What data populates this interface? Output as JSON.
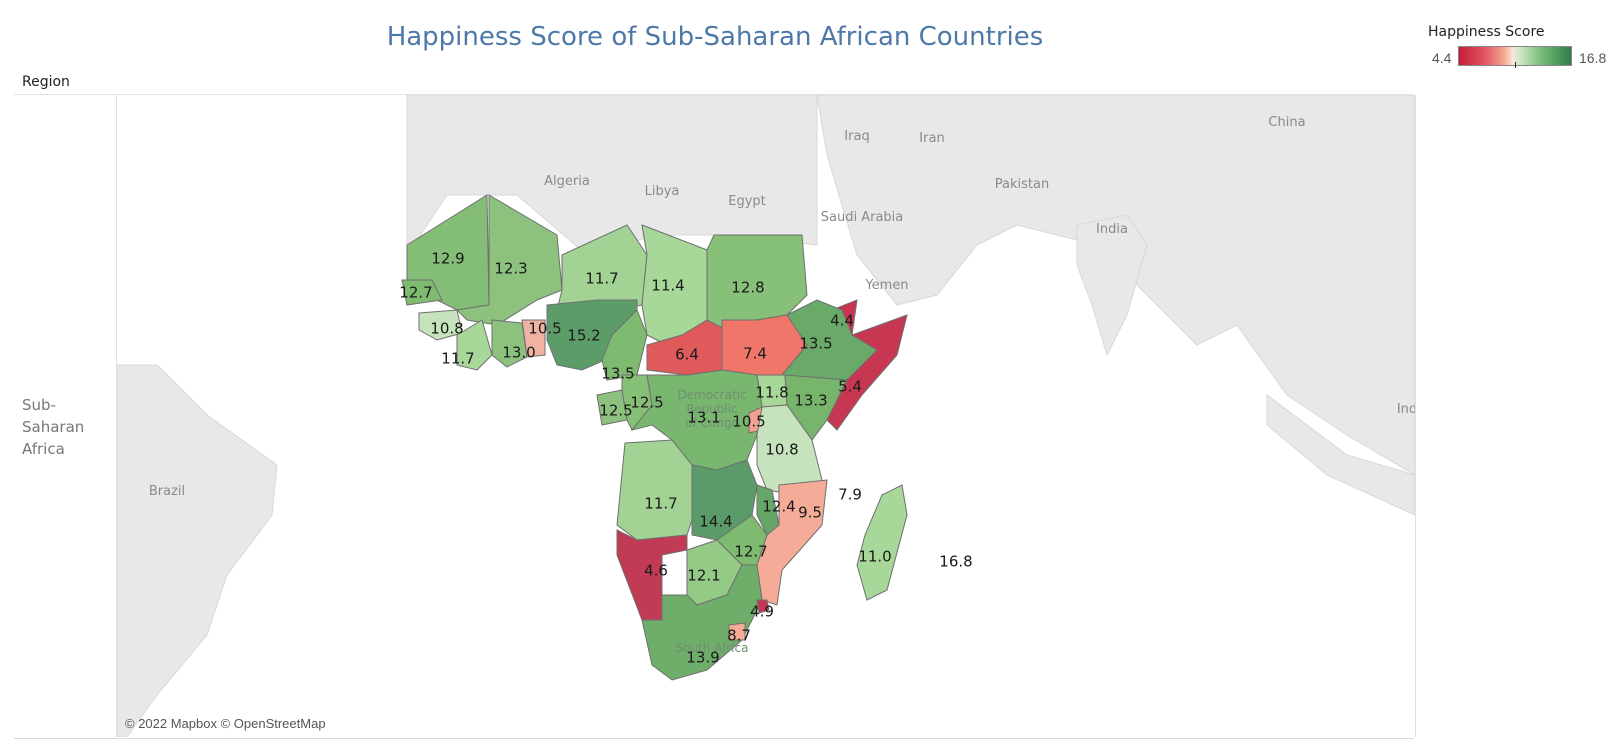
{
  "title": "Happiness Score of Sub-Saharan African Countries",
  "region_header": "Region",
  "region_value_line1": "Sub-Saharan",
  "region_value_line2": "Africa",
  "attribution": "© 2022 Mapbox © OpenStreetMap",
  "legend": {
    "title": "Happiness Score",
    "min": "4.4",
    "max": "16.8",
    "min_color": "#c41e3a",
    "mid_color": "#fbe6dc",
    "max_color": "#2e7d49"
  },
  "places": {
    "algeria": "Algeria",
    "libya": "Libya",
    "egypt": "Egypt",
    "iraq": "Iraq",
    "iran": "Iran",
    "saudi": "Saudi Arabia",
    "pakistan": "Pakistan",
    "china": "China",
    "india": "India",
    "yemen": "Yemen",
    "brazil": "Brazil",
    "drc_line1": "Democratic",
    "drc_line2": "Republic",
    "drc_line3": "of Congo",
    "south_africa": "South Africa",
    "ind_cut": "Ind"
  },
  "chart_data": {
    "type": "map",
    "measure": "Happiness Score",
    "scale_min": 4.4,
    "scale_max": 16.8,
    "values": [
      {
        "label": "12.9"
      },
      {
        "label": "12.3"
      },
      {
        "label": "11.7"
      },
      {
        "label": "11.4"
      },
      {
        "label": "12.8"
      },
      {
        "label": "12.7"
      },
      {
        "label": "10.8"
      },
      {
        "label": "10.5"
      },
      {
        "label": "15.2"
      },
      {
        "label": "11.7"
      },
      {
        "label": "13.0"
      },
      {
        "label": "13.5"
      },
      {
        "label": "6.4"
      },
      {
        "label": "7.4"
      },
      {
        "label": "4.4"
      },
      {
        "label": "13.5"
      },
      {
        "label": "5.4"
      },
      {
        "label": "11.8"
      },
      {
        "label": "13.3"
      },
      {
        "label": "12.5"
      },
      {
        "label": "12.5"
      },
      {
        "label": "13.1"
      },
      {
        "label": "10.5"
      },
      {
        "label": "10.8"
      },
      {
        "label": "7.9"
      },
      {
        "label": "11.7"
      },
      {
        "label": "14.4"
      },
      {
        "label": "12.4"
      },
      {
        "label": "9.5"
      },
      {
        "label": "11.0"
      },
      {
        "label": "16.8"
      },
      {
        "label": "4.6"
      },
      {
        "label": "12.1"
      },
      {
        "label": "12.7"
      },
      {
        "label": "4.9"
      },
      {
        "label": "8.7"
      },
      {
        "label": "13.9"
      }
    ]
  }
}
